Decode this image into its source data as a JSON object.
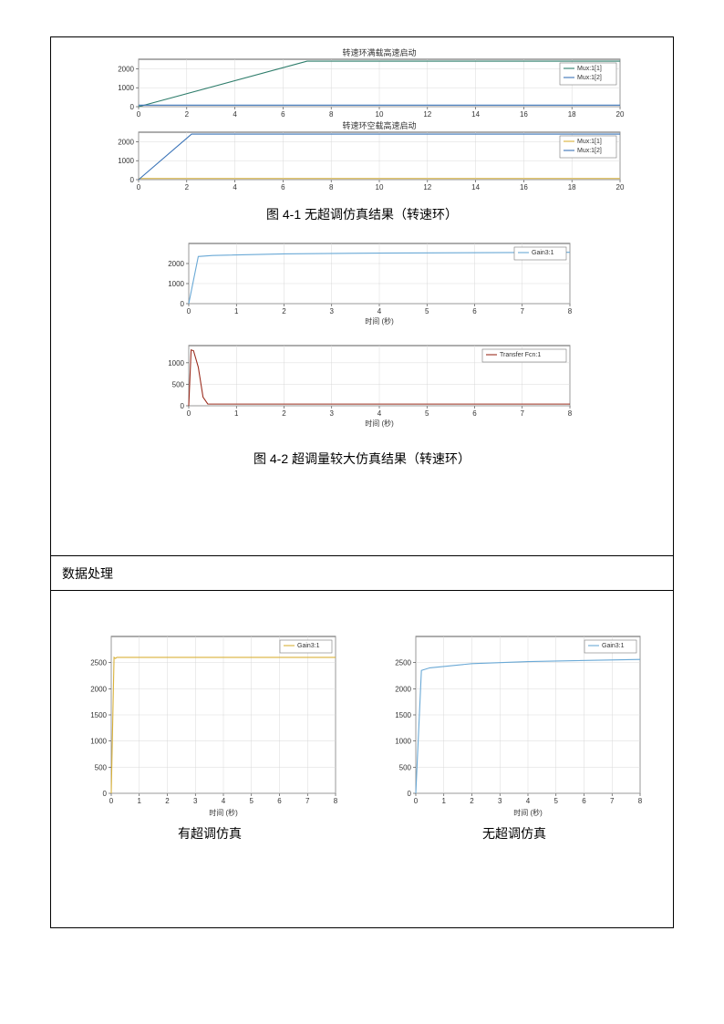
{
  "captions": {
    "fig41": "图 4-1  无超调仿真结果（转速环）",
    "fig42": "图 4-2 超调量较大仿真结果（转速环）",
    "section": "数据处理",
    "leftSub": "有超调仿真",
    "rightSub": "无超调仿真"
  },
  "colors": {
    "plotBg": "#ffffff",
    "border": "#000000",
    "axis": "#333333",
    "grid": "#d9d9d9",
    "tickText": "#333333",
    "titleText": "#333333",
    "line_teal": "#2e7d6b",
    "line_blue": "#3b74b8",
    "line_orange": "#d97a2b",
    "line_darkred": "#9b2d1f",
    "line_yellow": "#d9b23a",
    "line_lightblue": "#6aa9d6",
    "legendBox": "#7a7a7a"
  },
  "fonts": {
    "tick": 8,
    "title": 9,
    "legend": 7,
    "axisLabel": 8
  },
  "chart1a": {
    "title": "转速环满载高速启动",
    "xlim": [
      0,
      20
    ],
    "xticks": [
      0,
      2,
      4,
      6,
      8,
      10,
      12,
      14,
      16,
      18,
      20
    ],
    "ylim": [
      0,
      2500
    ],
    "yticks": [
      0,
      1000,
      2000
    ],
    "legend": [
      "Mux:1[1]",
      "Mux:1[2]"
    ],
    "series": [
      {
        "colorKey": "line_teal",
        "pts": [
          [
            0,
            0
          ],
          [
            7,
            2400
          ],
          [
            20,
            2400
          ]
        ]
      },
      {
        "colorKey": "line_blue",
        "pts": [
          [
            0,
            80
          ],
          [
            20,
            80
          ]
        ]
      }
    ]
  },
  "chart1b": {
    "title": "转速环空载高速启动",
    "xlim": [
      0,
      20
    ],
    "xticks": [
      0,
      2,
      4,
      6,
      8,
      10,
      12,
      14,
      16,
      18,
      20
    ],
    "ylim": [
      0,
      2500
    ],
    "yticks": [
      0,
      1000,
      2000
    ],
    "legend": [
      "Mux:1[1]",
      "Mux:1[2]"
    ],
    "series": [
      {
        "colorKey": "line_yellow",
        "pts": [
          [
            0,
            60
          ],
          [
            20,
            60
          ]
        ]
      },
      {
        "colorKey": "line_blue",
        "pts": [
          [
            0,
            0
          ],
          [
            2.2,
            2400
          ],
          [
            20,
            2400
          ]
        ]
      }
    ]
  },
  "chart2a": {
    "xlabel": "时间 (秒)",
    "xlim": [
      0,
      8
    ],
    "xticks": [
      0,
      1,
      2,
      3,
      4,
      5,
      6,
      7,
      8
    ],
    "ylim": [
      0,
      3000
    ],
    "yticks": [
      0,
      1000,
      2000
    ],
    "legend": [
      "Gain3:1"
    ],
    "series": [
      {
        "colorKey": "line_lightblue",
        "pts": [
          [
            0,
            0
          ],
          [
            0.2,
            2350
          ],
          [
            0.5,
            2400
          ],
          [
            2,
            2480
          ],
          [
            4,
            2520
          ],
          [
            8,
            2560
          ]
        ]
      }
    ]
  },
  "chart2b": {
    "xlabel": "时间 (秒)",
    "xlim": [
      0,
      8
    ],
    "xticks": [
      0,
      1,
      2,
      3,
      4,
      5,
      6,
      7,
      8
    ],
    "ylim": [
      0,
      1400
    ],
    "yticks": [
      0,
      500,
      1000
    ],
    "legend": [
      "Transfer Fcn:1"
    ],
    "series": [
      {
        "colorKey": "line_darkred",
        "pts": [
          [
            0,
            0
          ],
          [
            0.05,
            1300
          ],
          [
            0.1,
            1280
          ],
          [
            0.2,
            900
          ],
          [
            0.3,
            200
          ],
          [
            0.4,
            40
          ],
          [
            1,
            40
          ],
          [
            8,
            40
          ]
        ]
      }
    ]
  },
  "chart3left": {
    "xlabel": "时间 (秒)",
    "xlim": [
      0,
      8
    ],
    "xticks": [
      0,
      1,
      2,
      3,
      4,
      5,
      6,
      7,
      8
    ],
    "ylim": [
      0,
      3000
    ],
    "yticks": [
      0,
      500,
      1000,
      1500,
      2000,
      2500
    ],
    "legend": [
      "Gain3:1"
    ],
    "series": [
      {
        "colorKey": "line_yellow",
        "pts": [
          [
            0,
            0
          ],
          [
            0.1,
            2600
          ],
          [
            0.15,
            2580
          ],
          [
            0.2,
            2600
          ],
          [
            8,
            2600
          ]
        ]
      }
    ]
  },
  "chart3right": {
    "xlabel": "时间 (秒)",
    "xlim": [
      0,
      8
    ],
    "xticks": [
      0,
      1,
      2,
      3,
      4,
      5,
      6,
      7,
      8
    ],
    "ylim": [
      0,
      3000
    ],
    "yticks": [
      0,
      500,
      1000,
      1500,
      2000,
      2500
    ],
    "legend": [
      "Gain3:1"
    ],
    "series": [
      {
        "colorKey": "line_lightblue",
        "pts": [
          [
            0,
            0
          ],
          [
            0.2,
            2350
          ],
          [
            0.5,
            2400
          ],
          [
            2,
            2480
          ],
          [
            4,
            2520
          ],
          [
            8,
            2560
          ]
        ]
      }
    ]
  }
}
